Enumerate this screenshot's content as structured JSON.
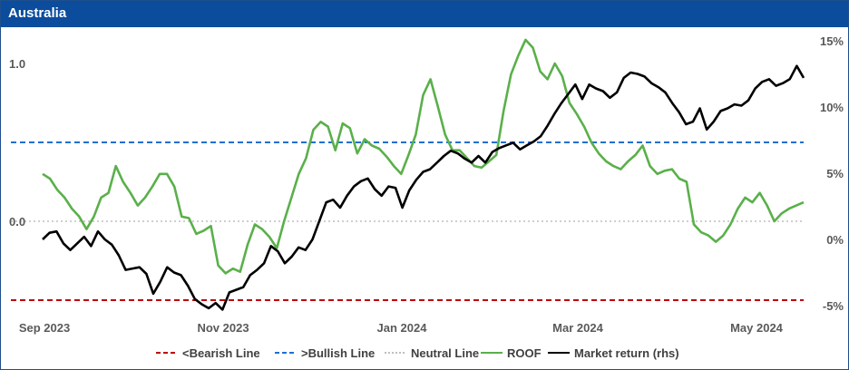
{
  "header": {
    "title": "Australia"
  },
  "colors": {
    "bearish": "#c00000",
    "bullish": "#1f6fd1",
    "neutral": "#bfbfbf",
    "roof": "#5ab04a",
    "market": "#000000",
    "title_bar": "#0b4c9c"
  },
  "chart_data": {
    "type": "line",
    "x_ticks": [
      "Sep 2023",
      "Nov 2023",
      "Jan 2024",
      "Mar 2024",
      "May 2024"
    ],
    "y_left_ticks": [
      "1.0",
      "0.0"
    ],
    "y_right_ticks": [
      "15%",
      "10%",
      "5%",
      "0%",
      "-5%"
    ],
    "ylim_left": [
      -0.6,
      1.17
    ],
    "ylim_right": [
      -5.3,
      15.6
    ],
    "legend_position": "bottom",
    "reference_lines": [
      {
        "name": "<Bearish Line",
        "value": -0.5,
        "style": "dashed"
      },
      {
        "name": ">Bullish Line",
        "value": 0.5,
        "style": "dashed"
      },
      {
        "name": "Neutral Line",
        "value": 0.0,
        "style": "dotted"
      }
    ],
    "series": [
      {
        "name": "ROOF",
        "axis": "left",
        "x_range": [
          "Sep 2023",
          "May 2024"
        ],
        "values": [
          0.3,
          0.27,
          0.2,
          0.15,
          0.08,
          0.03,
          -0.05,
          0.03,
          0.15,
          0.18,
          0.35,
          0.25,
          0.18,
          0.1,
          0.15,
          0.22,
          0.3,
          0.3,
          0.22,
          0.03,
          0.02,
          -0.08,
          -0.06,
          -0.03,
          -0.28,
          -0.33,
          -0.3,
          -0.32,
          -0.15,
          -0.02,
          -0.05,
          -0.1,
          -0.17,
          0.0,
          0.15,
          0.3,
          0.4,
          0.58,
          0.63,
          0.6,
          0.45,
          0.62,
          0.59,
          0.43,
          0.52,
          0.48,
          0.46,
          0.41,
          0.35,
          0.3,
          0.42,
          0.55,
          0.8,
          0.9,
          0.73,
          0.55,
          0.45,
          0.45,
          0.4,
          0.35,
          0.34,
          0.38,
          0.42,
          0.7,
          0.93,
          1.05,
          1.15,
          1.1,
          0.95,
          0.9,
          1.0,
          0.92,
          0.75,
          0.68,
          0.6,
          0.5,
          0.43,
          0.38,
          0.35,
          0.33,
          0.38,
          0.42,
          0.48,
          0.35,
          0.3,
          0.32,
          0.33,
          0.27,
          0.25,
          -0.02,
          -0.07,
          -0.09,
          -0.13,
          -0.09,
          -0.02,
          0.08,
          0.15,
          0.12,
          0.18,
          0.1,
          0.0,
          0.05,
          0.08,
          0.1,
          0.12
        ],
        "note_values": "ROOF series plotted with 105 points evenly spaced between first and last date"
      },
      {
        "name": "Market return (rhs)",
        "axis": "right",
        "x_range": [
          "Sep 2023",
          "May 2024"
        ],
        "values": [
          0,
          0.5,
          0.6,
          -0.3,
          -0.8,
          -0.3,
          0.2,
          -0.5,
          0.6,
          0,
          -0.4,
          -1.2,
          -2.3,
          -2.2,
          -2.1,
          -2.6,
          -4.1,
          -3.2,
          -2.1,
          -2.5,
          -2.7,
          -3.5,
          -4.5,
          -4.9,
          -5.2,
          -4.8,
          -5.3,
          -4,
          -3.8,
          -3.6,
          -2.7,
          -2.3,
          -1.8,
          -0.5,
          -0.9,
          -1.8,
          -1.3,
          -0.6,
          -0.8,
          0,
          1.4,
          2.8,
          3,
          2.4,
          3.3,
          4,
          4.4,
          4.6,
          3.8,
          3.3,
          4,
          3.9,
          2.4,
          3.7,
          4.5,
          5.1,
          5.3,
          5.8,
          6.3,
          6.7,
          6.5,
          6.1,
          5.8,
          6.3,
          5.8,
          6.6,
          6.9,
          7.1,
          7.3,
          6.8,
          7.1,
          7.4,
          7.8,
          8.6,
          9.5,
          10.3,
          11,
          11.7,
          10.6,
          11.7,
          11.4,
          11.2,
          10.7,
          11.1,
          12.2,
          12.6,
          12.5,
          12.3,
          11.8,
          11.5,
          11.1,
          10.3,
          9.6,
          8.7,
          8.9,
          9.9,
          8.3,
          8.9,
          9.7,
          9.9,
          10.2,
          10.1,
          10.5,
          11.4,
          11.9,
          12.1,
          11.6,
          11.8,
          12.1,
          13.1,
          12.2
        ]
      }
    ]
  },
  "legend": [
    {
      "label": "<Bearish Line",
      "key": "bearish"
    },
    {
      "label": ">Bullish Line",
      "key": "bullish"
    },
    {
      "label": "Neutral Line",
      "key": "neutral"
    },
    {
      "label": "ROOF",
      "key": "roof"
    },
    {
      "label": "Market return (rhs)",
      "key": "market"
    }
  ]
}
